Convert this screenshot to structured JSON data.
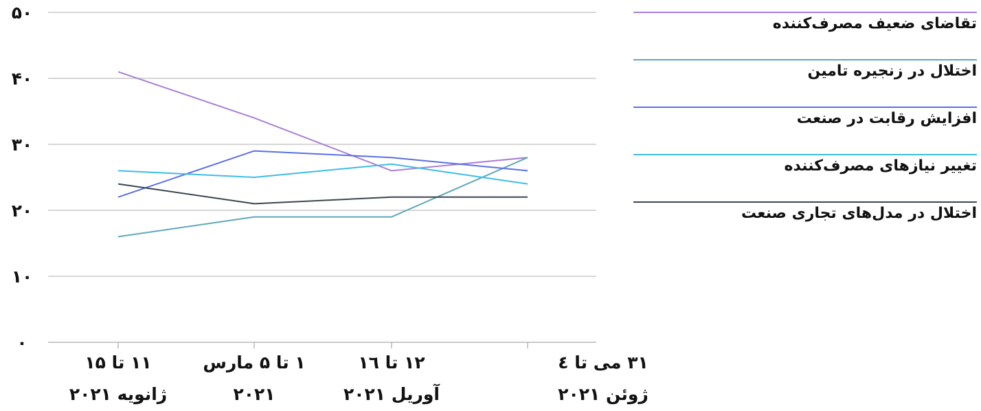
{
  "chart_data": {
    "type": "line",
    "categories": [
      [
        "۱۱ تا ۱۵",
        "ژانویه ۲۰۲۱"
      ],
      [
        "۱ تا ۵ مارس",
        "۲۰۲۱"
      ],
      [
        "۱۲ تا ۱٦",
        "آوریل ۲۰۲۱"
      ],
      [
        "۳۱ می تا ٤",
        "ژوئن ۲۰۲۱"
      ]
    ],
    "y_ticks": [
      "۰",
      "۱۰",
      "۲۰",
      "۳۰",
      "۴۰",
      "۵۰"
    ],
    "ylim": [
      0,
      50
    ],
    "grid": true,
    "legend_position": "right",
    "series": [
      {
        "name": "تقاضای ضعیف مصرف‌کننده",
        "color": "#a97fd6",
        "values": [
          41,
          34,
          26,
          28
        ]
      },
      {
        "name": "اختلال در زنجیره تامین",
        "color": "#5fa8b8",
        "values": [
          16,
          19,
          19,
          28
        ]
      },
      {
        "name": "افزایش رقابت در صنعت",
        "color": "#5b6fe3",
        "values": [
          22,
          29,
          28,
          26
        ]
      },
      {
        "name": "تغییر نیازهای مصرف‌کننده",
        "color": "#3cbce8",
        "values": [
          26,
          25,
          27,
          24
        ]
      },
      {
        "name": "اختلال در مدل‌های تجاری صنعت",
        "color": "#3a4550",
        "values": [
          24,
          21,
          22,
          22
        ]
      }
    ]
  }
}
